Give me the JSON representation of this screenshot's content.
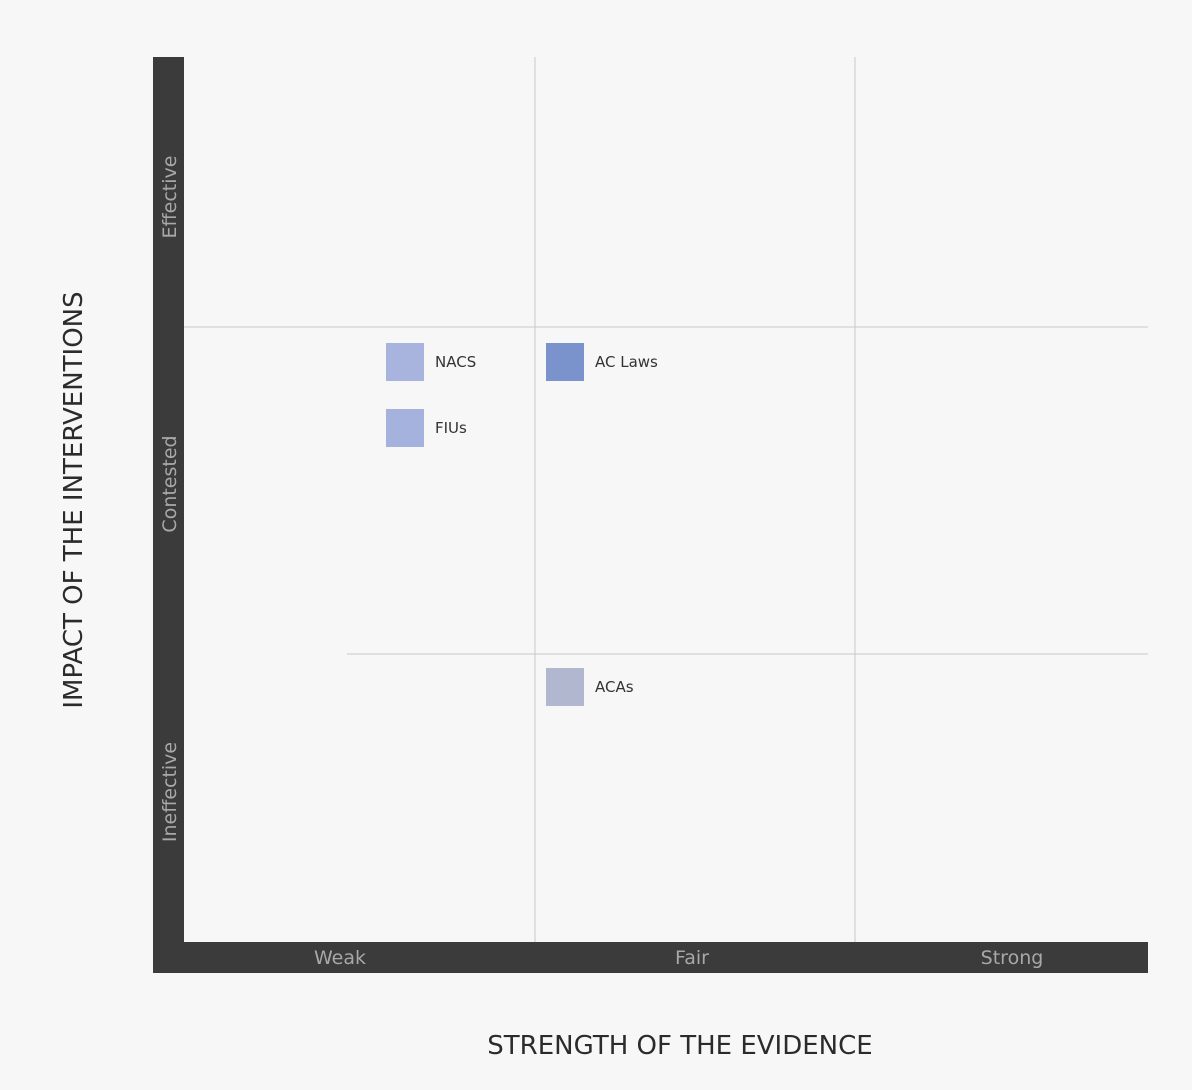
{
  "chart_data": {
    "type": "scatter",
    "x_axis": {
      "label": "STRENGTH OF THE EVIDENCE",
      "categories": [
        "Weak",
        "Fair",
        "Strong"
      ]
    },
    "y_axis": {
      "label": "IMPACT OF THE INTERVENTIONS",
      "categories": [
        "Ineffective",
        "Contested",
        "Effective"
      ]
    },
    "grid": true,
    "points": [
      {
        "name": "NACS",
        "x": "Weak",
        "y": "Contested",
        "color": "#a9b4de"
      },
      {
        "name": "FIUs",
        "x": "Weak",
        "y": "Contested",
        "color": "#a5b2de"
      },
      {
        "name": "AC Laws",
        "x": "Fair",
        "y": "Contested",
        "color": "#7b93cc"
      },
      {
        "name": "ACAs",
        "x": "Fair",
        "y": "Ineffective",
        "color": "#b1b7cf"
      }
    ]
  },
  "colors": {
    "axis_bar": "#3b3b3b",
    "grid": "#c9c9c9",
    "background": "#f7f7f7"
  }
}
